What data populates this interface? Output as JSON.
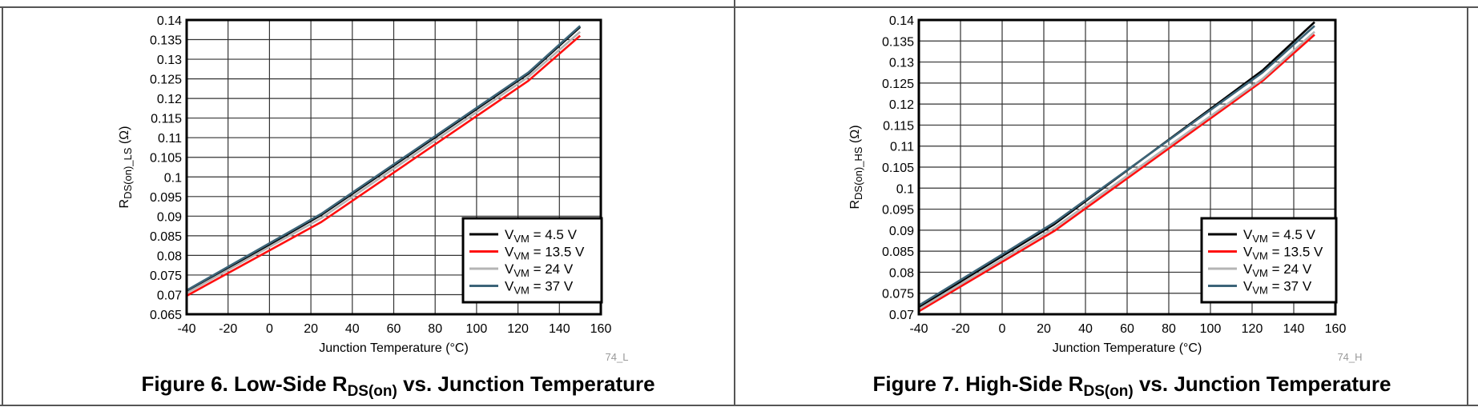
{
  "chart_data": [
    {
      "type": "line",
      "id": "figure-6",
      "title": {
        "prefix": "Figure 6. Low-Side R",
        "sub": "DS(on)",
        "suffix": " vs. Junction Temperature"
      },
      "xlabel": "Junction Temperature (°C)",
      "ylabel": {
        "main": "R",
        "sub": "DS(on)_LS",
        "suffix": " (Ω)"
      },
      "figure_code": "74_L",
      "xlim": [
        -40,
        160
      ],
      "ylim": [
        0.065,
        0.14
      ],
      "xticks": [
        -40,
        -20,
        0,
        20,
        40,
        60,
        80,
        100,
        120,
        140,
        160
      ],
      "yticks": [
        0.065,
        0.07,
        0.075,
        0.08,
        0.085,
        0.09,
        0.095,
        0.1,
        0.105,
        0.11,
        0.115,
        0.12,
        0.125,
        0.13,
        0.135,
        0.14
      ],
      "ytick_labels": [
        "0.065",
        "0.07",
        "0.075",
        "0.08",
        "0.085",
        "0.09",
        "0.095",
        "0.1",
        "0.105",
        "0.11",
        "0.115",
        "0.12",
        "0.125",
        "0.13",
        "0.135",
        "0.14"
      ],
      "grid": true,
      "legend_position": "bottom-right",
      "x": [
        -40,
        25,
        125,
        150
      ],
      "series": [
        {
          "name": {
            "main": "V",
            "sub": "VM",
            "rest": " = 4.5 V"
          },
          "color": "#000000",
          "values": [
            0.0708,
            0.0903,
            0.1263,
            0.1382
          ]
        },
        {
          "name": {
            "main": "V",
            "sub": "VM",
            "rest": " = 13.5 V"
          },
          "color": "#ff1010",
          "values": [
            0.0697,
            0.0885,
            0.1245,
            0.136
          ]
        },
        {
          "name": {
            "main": "V",
            "sub": "VM",
            "rest": " = 24 V"
          },
          "color": "#b4b4b4",
          "values": [
            0.0704,
            0.0895,
            0.1255,
            0.137
          ]
        },
        {
          "name": {
            "main": "V",
            "sub": "VM",
            "rest": " = 37 V"
          },
          "color": "#3c6478",
          "values": [
            0.0711,
            0.0906,
            0.1266,
            0.1385
          ]
        }
      ]
    },
    {
      "type": "line",
      "id": "figure-7",
      "title": {
        "prefix": "Figure 7. High-Side R",
        "sub": "DS(on)",
        "suffix": " vs. Junction Temperature"
      },
      "xlabel": "Junction Temperature (°C)",
      "ylabel": {
        "main": "R",
        "sub": "DS(on)_HS",
        "suffix": " (Ω)"
      },
      "figure_code": "74_H",
      "xlim": [
        -40,
        160
      ],
      "ylim": [
        0.07,
        0.14
      ],
      "xticks": [
        -40,
        -20,
        0,
        20,
        40,
        60,
        80,
        100,
        120,
        140,
        160
      ],
      "yticks": [
        0.07,
        0.075,
        0.08,
        0.085,
        0.09,
        0.095,
        0.1,
        0.105,
        0.11,
        0.115,
        0.12,
        0.125,
        0.13,
        0.135,
        0.14
      ],
      "ytick_labels": [
        "0.07",
        "0.075",
        "0.08",
        "0.085",
        "0.09",
        "0.095",
        "0.1",
        "0.105",
        "0.11",
        "0.115",
        "0.12",
        "0.125",
        "0.13",
        "0.135",
        "0.14"
      ],
      "grid": true,
      "legend_position": "bottom-right",
      "x": [
        -40,
        25,
        125,
        150
      ],
      "series": [
        {
          "name": {
            "main": "V",
            "sub": "VM",
            "rest": " = 4.5 V"
          },
          "color": "#000000",
          "values": [
            0.0717,
            0.0914,
            0.128,
            0.1395
          ]
        },
        {
          "name": {
            "main": "V",
            "sub": "VM",
            "rest": " = 13.5 V"
          },
          "color": "#ff1010",
          "values": [
            0.0707,
            0.0898,
            0.1255,
            0.1365
          ]
        },
        {
          "name": {
            "main": "V",
            "sub": "VM",
            "rest": " = 24 V"
          },
          "color": "#b4b4b4",
          "values": [
            0.0712,
            0.0905,
            0.126,
            0.1372
          ]
        },
        {
          "name": {
            "main": "V",
            "sub": "VM",
            "rest": " = 37 V"
          },
          "color": "#3c6478",
          "values": [
            0.0721,
            0.0918,
            0.1275,
            0.1386
          ]
        }
      ]
    }
  ]
}
